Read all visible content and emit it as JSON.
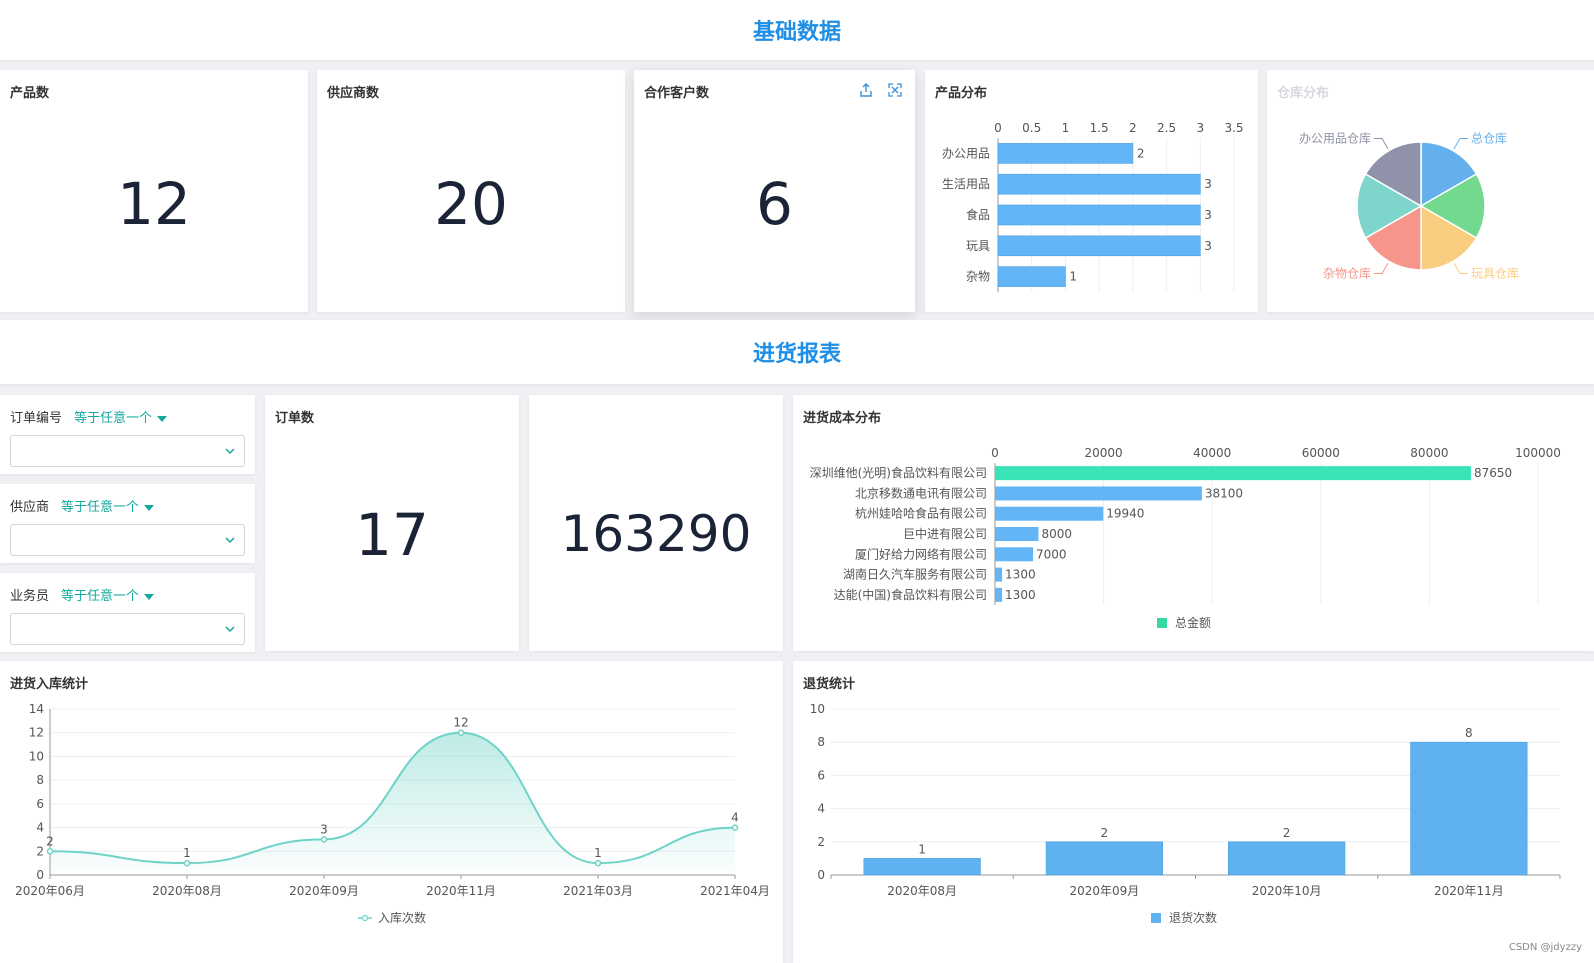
{
  "banners": {
    "basic": "基础数据",
    "purchase": "进货报表"
  },
  "kpis": [
    {
      "title": "产品数",
      "value": "12"
    },
    {
      "title": "供应商数",
      "value": "20"
    },
    {
      "title": "合作客户数",
      "value": "6"
    },
    {
      "title": "订单数",
      "value": "17"
    },
    {
      "title": "",
      "value": "163290"
    }
  ],
  "filters": [
    {
      "label": "订单编号",
      "operator": "等于任意一个",
      "value": ""
    },
    {
      "label": "供应商",
      "operator": "等于任意一个",
      "value": ""
    },
    {
      "label": "业务员",
      "operator": "等于任意一个",
      "value": ""
    }
  ],
  "icons": {
    "export": "export-icon",
    "fullscreen": "fullscreen-icon",
    "dropdown": "chevron-down-icon"
  },
  "watermark": "CSDN @jdyzzy",
  "chart_data": [
    {
      "id": "product_distribution",
      "title": "产品分布",
      "type": "bar",
      "orientation": "horizontal",
      "categories": [
        "办公用品",
        "生活用品",
        "食品",
        "玩具",
        "杂物"
      ],
      "values": [
        2,
        3,
        3,
        3,
        1
      ],
      "xlim": [
        0,
        3.5
      ],
      "ticks": [
        "0",
        "0.5",
        "1",
        "1.5",
        "2",
        "2.5",
        "3",
        "3.5"
      ],
      "color": "#64b5f6",
      "grid": true
    },
    {
      "id": "warehouse_distribution",
      "title": "仓库分布",
      "type": "pie",
      "slices": [
        {
          "label": "总仓库",
          "value": 1,
          "color": "#64b0ec"
        },
        {
          "label": "",
          "value": 1,
          "color": "#72d98e"
        },
        {
          "label": "玩具仓库",
          "value": 1,
          "color": "#f9cd7f"
        },
        {
          "label": "杂物仓库",
          "value": 1,
          "color": "#f6958a"
        },
        {
          "label": "",
          "value": 1,
          "color": "#7dd5cc"
        },
        {
          "label": "办公用品仓库",
          "value": 1,
          "color": "#8f92a8"
        }
      ]
    },
    {
      "id": "purchase_cost",
      "title": "进货成本分布",
      "type": "bar",
      "orientation": "horizontal",
      "categories": [
        "深圳维他(光明)食品饮料有限公司",
        "北京移数通电讯有限公司",
        "杭州娃哈哈食品有限公司",
        "巨中进有限公司",
        "厦门好给力网络有限公司",
        "湖南日久汽车服务有限公司",
        "达能(中国)食品饮料有限公司"
      ],
      "values": [
        87650,
        38100,
        19940,
        8000,
        7000,
        1300,
        1300
      ],
      "highlight_index": 0,
      "xlim": [
        0,
        100000
      ],
      "ticks": [
        "0",
        "20000",
        "40000",
        "60000",
        "80000",
        "100000"
      ],
      "legend": "总金额",
      "legend_position": "bottom",
      "colors": {
        "highlight": "#3be3b8",
        "normal": "#64b5f6",
        "legend": "#36d9a6"
      },
      "grid": true
    },
    {
      "id": "stock_in",
      "title": "进货入库统计",
      "type": "area",
      "categories": [
        "2020年06月",
        "2020年08月",
        "2020年09月",
        "2020年11月",
        "2021年03月",
        "2021年04月"
      ],
      "values": [
        2,
        1,
        3,
        12,
        1,
        4
      ],
      "ylim": [
        0,
        14
      ],
      "yticks": [
        0,
        2,
        4,
        6,
        8,
        10,
        12,
        14
      ],
      "legend": "入库次数",
      "legend_position": "bottom",
      "color": "#6fd3c8",
      "grid": true
    },
    {
      "id": "returns",
      "title": "退货统计",
      "type": "bar",
      "categories": [
        "2020年08月",
        "2020年09月",
        "2020年10月",
        "2020年11月"
      ],
      "values": [
        1,
        2,
        2,
        8
      ],
      "ylim": [
        0,
        10
      ],
      "yticks": [
        0,
        2,
        4,
        6,
        8,
        10
      ],
      "legend": "退货次数",
      "legend_position": "bottom",
      "color": "#5fb2ef",
      "grid": true
    }
  ]
}
